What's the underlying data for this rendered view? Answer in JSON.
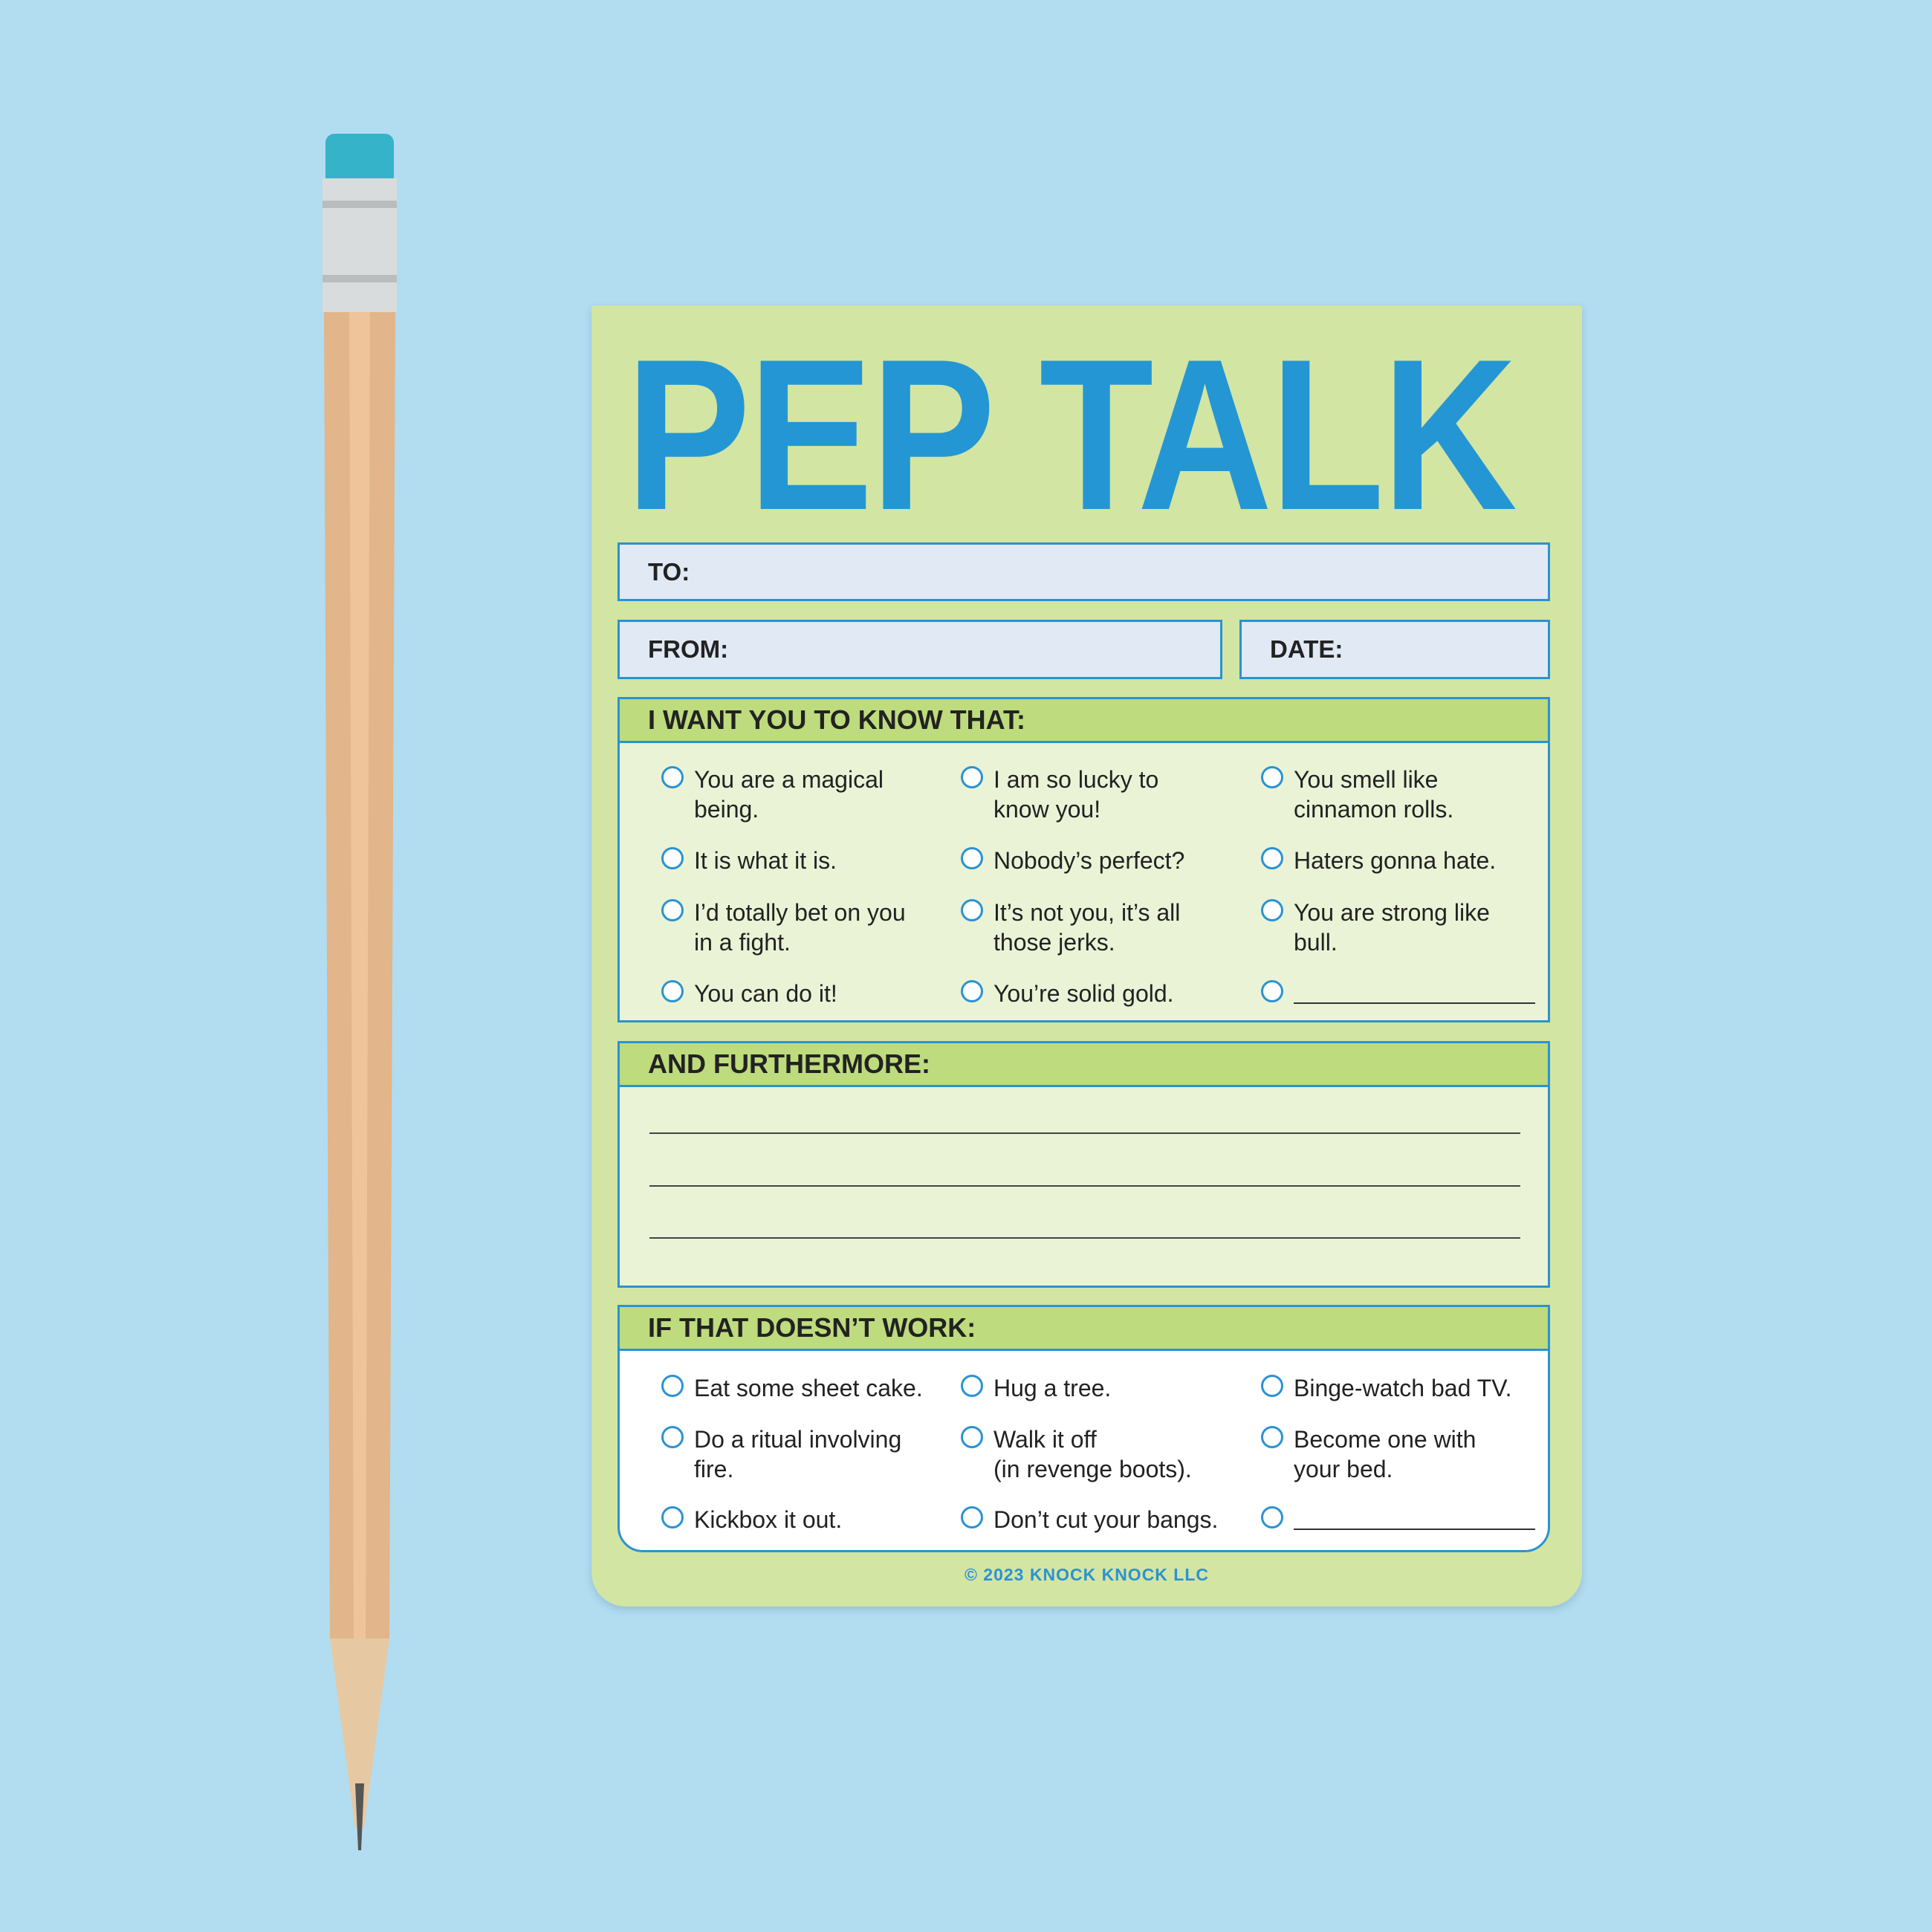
{
  "notepad": {
    "title": "PEP TALK",
    "fields": {
      "to": "TO:",
      "from": "FROM:",
      "date": "DATE:"
    },
    "sections": [
      {
        "heading": "I WANT YOU TO KNOW THAT:",
        "items": [
          [
            "You are a magical",
            "being."
          ],
          [
            "I am so lucky to",
            "know you!"
          ],
          [
            "You smell like",
            "cinnamon rolls."
          ],
          [
            "It is what it is.",
            ""
          ],
          [
            "Nobody’s perfect?",
            ""
          ],
          [
            "Haters gonna hate.",
            ""
          ],
          [
            "I’d totally bet on you",
            "in a fight."
          ],
          [
            "It’s not you, it’s all",
            "those jerks."
          ],
          [
            "You are strong like",
            "bull."
          ],
          [
            "You can do it!",
            ""
          ],
          [
            "You’re solid gold.",
            ""
          ],
          [
            "",
            ""
          ]
        ]
      },
      {
        "heading": "AND FURTHERMORE:"
      },
      {
        "heading": "IF THAT DOESN’T WORK:",
        "items": [
          [
            "Eat some sheet cake.",
            ""
          ],
          [
            "Hug a tree.",
            ""
          ],
          [
            "Binge-watch bad TV.",
            ""
          ],
          [
            "Do a ritual involving",
            "fire."
          ],
          [
            "Walk it off",
            "(in revenge boots)."
          ],
          [
            "Become one with",
            "your bed."
          ],
          [
            "Kickbox it out.",
            ""
          ],
          [
            "Don’t cut your bangs.",
            ""
          ],
          [
            "",
            ""
          ]
        ]
      }
    ],
    "footer": "© 2023 KNOCK KNOCK LLC"
  },
  "colors": {
    "background": "#b2dcf0",
    "pad": "#d3e5a3",
    "accent_blue": "#2596d4",
    "header_green": "#bedb7d"
  },
  "icons": {
    "checkbox": "circle-outline",
    "pencil": "pencil"
  }
}
